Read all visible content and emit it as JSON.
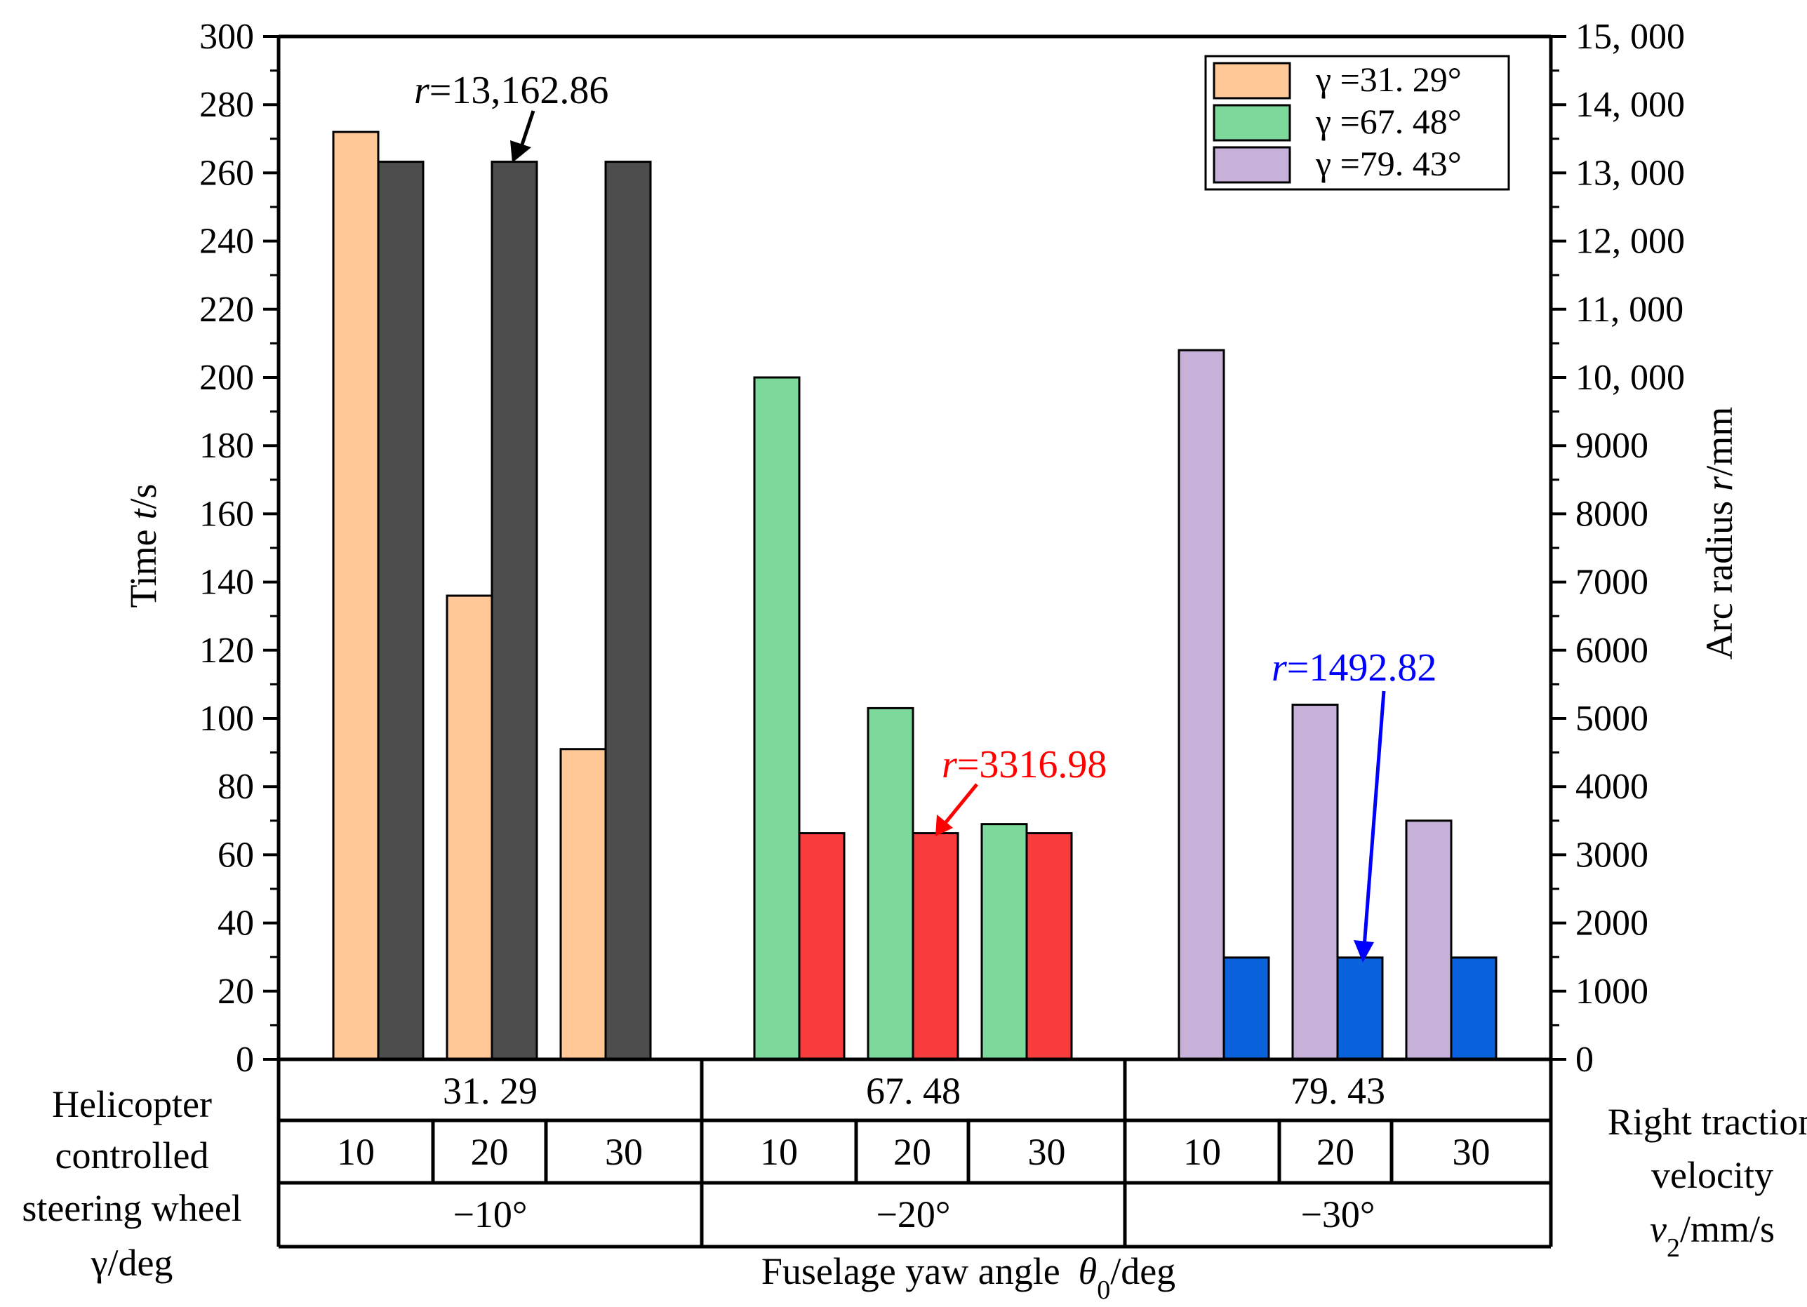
{
  "chart_data": {
    "type": "bar",
    "left_axis": {
      "title": "Time  t/s",
      "title_main": "Time",
      "title_var": "t",
      "title_unit": "/s",
      "range": [
        0,
        300
      ],
      "ticks": [
        "0",
        "20",
        "40",
        "60",
        "80",
        "100",
        "120",
        "140",
        "160",
        "180",
        "200",
        "220",
        "240",
        "260",
        "280",
        "300"
      ]
    },
    "right_axis": {
      "title": "Arc radius  r/mm",
      "title_main": "Arc radius",
      "title_var": "r",
      "title_unit": "/mm",
      "range": [
        0,
        15000
      ],
      "ticks": [
        "0",
        "1000",
        "2000",
        "3000",
        "4000",
        "5000",
        "6000",
        "7000",
        "8000",
        "9000",
        "10, 000",
        "11, 000",
        "12, 000",
        "13, 000",
        "14, 000",
        "15, 000"
      ]
    },
    "x_title": "Fuselage yaw angle  θ0/deg",
    "x_title_main": "Fuselage yaw angle",
    "x_title_var": "θ",
    "x_title_sub": "0",
    "x_title_unit": "/deg",
    "groups": [
      {
        "gamma": "31. 29",
        "yaw": "−10°",
        "time_color": "#FFC896",
        "radius_color": "#4D4D4D",
        "velocities": [
          "10",
          "20",
          "30"
        ],
        "time": [
          272,
          136,
          91
        ],
        "radius": [
          13162.86,
          13162.86,
          13162.86
        ]
      },
      {
        "gamma": "67. 48",
        "yaw": "−20°",
        "time_color": "#7DD89B",
        "radius_color": "#F83C3C",
        "velocities": [
          "10",
          "20",
          "30"
        ],
        "time": [
          200,
          103,
          69
        ],
        "radius": [
          3316.98,
          3316.98,
          3316.98
        ]
      },
      {
        "gamma": "79. 43",
        "yaw": "−30°",
        "time_color": "#C8B1D9",
        "radius_color": "#0A63DC",
        "velocities": [
          "10",
          "20",
          "30"
        ],
        "time": [
          208,
          104,
          70
        ],
        "radius": [
          1492.82,
          1492.82,
          1492.82
        ]
      }
    ],
    "legend": {
      "position": "top-right",
      "entries": [
        {
          "label": "γ =31. 29°",
          "color": "#FFC896"
        },
        {
          "label": "γ =67. 48°",
          "color": "#7DD89B"
        },
        {
          "label": "γ =79. 43°",
          "color": "#C8B1D9"
        }
      ]
    },
    "annotations": [
      {
        "var": "r",
        "text": "=13,162.86",
        "color": "#000000"
      },
      {
        "var": "r",
        "text": "=3316.98",
        "color": "#FF0000"
      },
      {
        "var": "r",
        "text": "=1492.82",
        "color": "#0000FF"
      }
    ],
    "left_table_label": [
      "Helicopter",
      "controlled",
      "steering wheel",
      "γ/deg"
    ],
    "right_table_label": [
      "Right traction",
      "velocity",
      "v2/mm/s"
    ],
    "right_table_label_var": "v",
    "right_table_label_sub": "2",
    "right_table_label_unit": "/mm/s",
    "grid": false
  }
}
